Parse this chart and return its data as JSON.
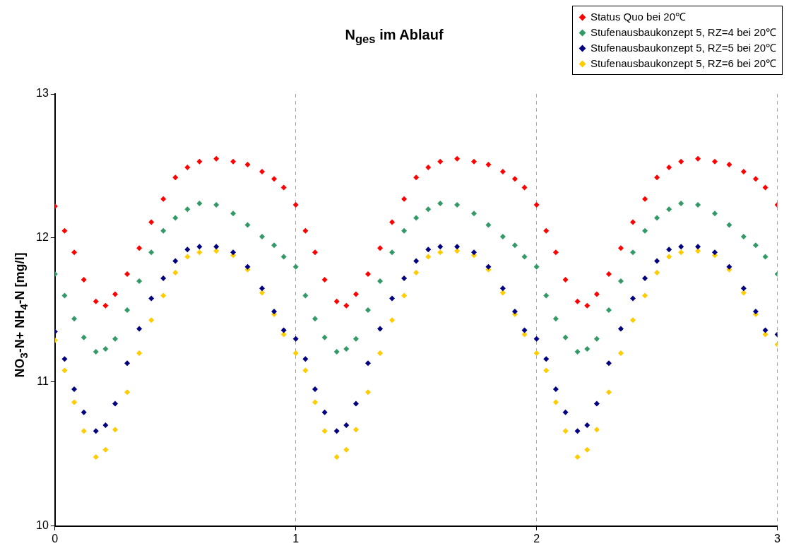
{
  "chart_data": {
    "type": "scatter",
    "title": "N$_{ges}$ im Ablauf",
    "ylabel": "NO$_{3}$-N+ NH$_{4}$-N [mg/l]",
    "x": [
      0,
      0.04,
      0.08,
      0.12,
      0.17,
      0.21,
      0.25,
      0.3,
      0.35,
      0.4,
      0.45,
      0.5,
      0.55,
      0.6,
      0.67,
      0.74,
      0.8,
      0.86,
      0.91,
      0.95,
      1,
      1.04,
      1.08,
      1.12,
      1.17,
      1.21,
      1.25,
      1.3,
      1.35,
      1.4,
      1.45,
      1.5,
      1.55,
      1.6,
      1.67,
      1.74,
      1.8,
      1.86,
      1.91,
      1.95,
      2,
      2.04,
      2.08,
      2.12,
      2.17,
      2.21,
      2.25,
      2.3,
      2.35,
      2.4,
      2.45,
      2.5,
      2.55,
      2.6,
      2.67,
      2.74,
      2.8,
      2.86,
      2.91,
      2.95,
      3
    ],
    "series": [
      {
        "name": "Status Quo bei 20℃",
        "color": "#ff0000",
        "values": [
          12.22,
          12.05,
          11.9,
          11.71,
          11.56,
          11.53,
          11.61,
          11.75,
          11.93,
          12.11,
          12.27,
          12.42,
          12.49,
          12.53,
          12.55,
          12.53,
          12.51,
          12.46,
          12.41,
          12.35,
          12.23,
          12.05,
          11.9,
          11.71,
          11.56,
          11.53,
          11.61,
          11.75,
          11.93,
          12.11,
          12.27,
          12.42,
          12.49,
          12.53,
          12.55,
          12.53,
          12.51,
          12.46,
          12.41,
          12.35,
          12.23,
          12.05,
          11.9,
          11.71,
          11.56,
          11.53,
          11.61,
          11.75,
          11.93,
          12.11,
          12.27,
          12.42,
          12.49,
          12.53,
          12.55,
          12.53,
          12.51,
          12.46,
          12.41,
          12.35,
          12.23
        ]
      },
      {
        "name": "Stufenausbaukonzept 5, RZ=4 bei 20℃",
        "color": "#339966",
        "values": [
          11.75,
          11.6,
          11.44,
          11.31,
          11.21,
          11.23,
          11.3,
          11.5,
          11.7,
          11.9,
          12.05,
          12.14,
          12.2,
          12.24,
          12.23,
          12.17,
          12.09,
          12.01,
          11.95,
          11.87,
          11.8,
          11.6,
          11.44,
          11.31,
          11.21,
          11.23,
          11.3,
          11.5,
          11.7,
          11.9,
          12.05,
          12.14,
          12.2,
          12.24,
          12.23,
          12.17,
          12.09,
          12.01,
          11.95,
          11.87,
          11.8,
          11.6,
          11.44,
          11.31,
          11.21,
          11.23,
          11.3,
          11.5,
          11.7,
          11.9,
          12.05,
          12.14,
          12.2,
          12.24,
          12.23,
          12.17,
          12.09,
          12.01,
          11.95,
          11.87,
          11.75
        ]
      },
      {
        "name": "Stufenausbaukonzept 5, RZ=5 bei 20℃",
        "color": "#000080",
        "values": [
          11.35,
          11.16,
          10.95,
          10.79,
          10.66,
          10.7,
          10.85,
          11.13,
          11.37,
          11.58,
          11.72,
          11.84,
          11.92,
          11.94,
          11.94,
          11.9,
          11.8,
          11.65,
          11.49,
          11.36,
          11.3,
          11.16,
          10.95,
          10.79,
          10.66,
          10.7,
          10.85,
          11.13,
          11.37,
          11.58,
          11.72,
          11.84,
          11.92,
          11.94,
          11.94,
          11.9,
          11.8,
          11.65,
          11.49,
          11.36,
          11.3,
          11.16,
          10.95,
          10.79,
          10.66,
          10.7,
          10.85,
          11.13,
          11.37,
          11.58,
          11.72,
          11.84,
          11.92,
          11.94,
          11.94,
          11.9,
          11.8,
          11.65,
          11.49,
          11.36,
          11.33
        ]
      },
      {
        "name": "Stufenausbaukonzept 5, RZ=6 bei 20℃",
        "color": "#ffcc00",
        "values": [
          11.29,
          11.08,
          10.86,
          10.66,
          10.48,
          10.53,
          10.67,
          10.93,
          11.2,
          11.43,
          11.6,
          11.76,
          11.87,
          11.9,
          11.91,
          11.88,
          11.78,
          11.62,
          11.47,
          11.33,
          11.2,
          11.08,
          10.86,
          10.66,
          10.48,
          10.53,
          10.67,
          10.93,
          11.2,
          11.43,
          11.6,
          11.76,
          11.87,
          11.9,
          11.91,
          11.88,
          11.78,
          11.62,
          11.47,
          11.33,
          11.2,
          11.08,
          10.86,
          10.66,
          10.48,
          10.53,
          10.67,
          10.93,
          11.2,
          11.43,
          11.6,
          11.76,
          11.87,
          11.9,
          11.91,
          11.88,
          11.78,
          11.62,
          11.47,
          11.33,
          11.26
        ]
      }
    ],
    "xlim": [
      0,
      3
    ],
    "xticks": [
      0,
      1,
      2,
      3
    ],
    "ylim": [
      10,
      13
    ],
    "yticks": [
      10,
      11,
      12,
      13
    ],
    "grid": "x",
    "legend": "top right",
    "marker": "diamond"
  }
}
